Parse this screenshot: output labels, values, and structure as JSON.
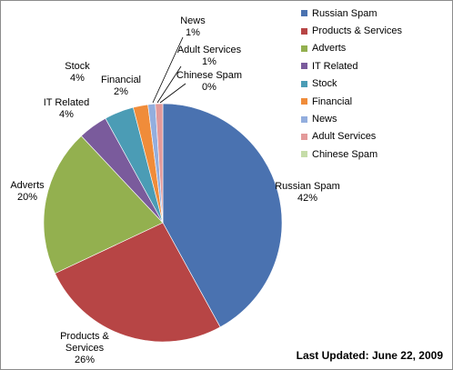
{
  "chart_data": {
    "type": "pie",
    "categories": [
      "Russian Spam",
      "Products & Services",
      "Adverts",
      "IT Related",
      "Stock",
      "Financial",
      "News",
      "Adult Services",
      "Chinese Spam"
    ],
    "values": [
      42,
      26,
      20,
      4,
      4,
      2,
      1,
      1,
      0
    ],
    "value_labels": [
      "42%",
      "26%",
      "20%",
      "4%",
      "4%",
      "2%",
      "1%",
      "1%",
      "0%"
    ],
    "colors": [
      "#4a72b0",
      "#b74545",
      "#93b04f",
      "#7a5b9c",
      "#4b9cb5",
      "#f08c3a",
      "#93aede",
      "#e39a9a",
      "#c5dca8"
    ],
    "legend_position": "right"
  },
  "footer": {
    "last_updated": "Last Updated: June 22, 2009"
  }
}
